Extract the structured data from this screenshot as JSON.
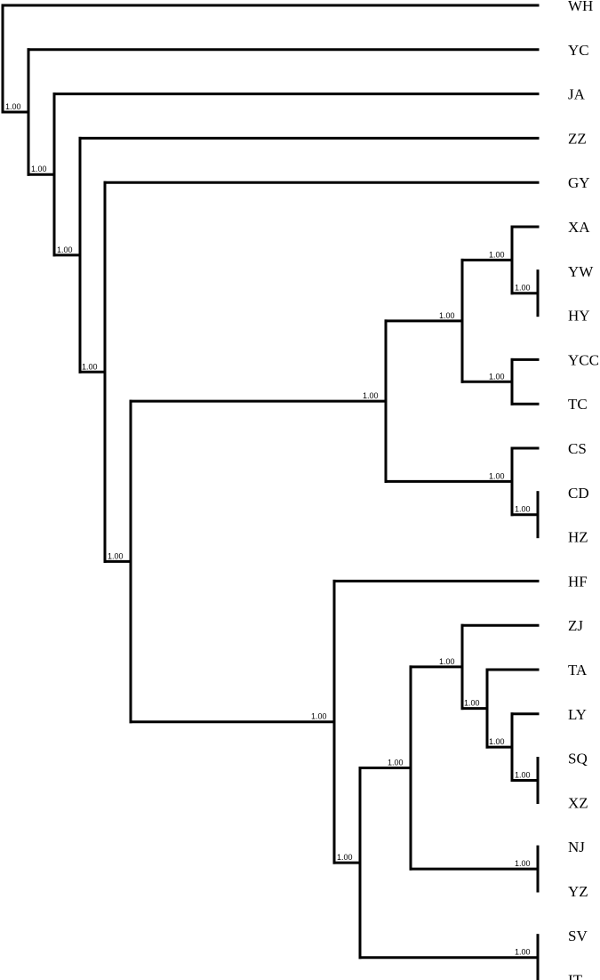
{
  "tree": {
    "leaves": [
      "WH",
      "YC",
      "JA",
      "ZZ",
      "GY",
      "XA",
      "YW",
      "HY",
      "YCC",
      "TC",
      "CS",
      "CD",
      "HZ",
      "HF",
      "ZJ",
      "TA",
      "LY",
      "SQ",
      "XZ",
      "NJ",
      "YZ",
      "SV",
      "IT"
    ],
    "root": {
      "children": [
        {
          "leaf": "WH"
        },
        {
          "support": "1.00",
          "children": [
            {
              "leaf": "YC"
            },
            {
              "support": "1.00",
              "children": [
                {
                  "leaf": "JA"
                },
                {
                  "support": "1.00",
                  "children": [
                    {
                      "leaf": "ZZ"
                    },
                    {
                      "support": "1.00",
                      "children": [
                        {
                          "leaf": "GY"
                        },
                        {
                          "support": "1.00",
                          "children": [
                            {
                              "support": "1.00",
                              "children": [
                                {
                                  "support": "1.00",
                                  "children": [
                                    {
                                      "support": "1.00",
                                      "children": [
                                        {
                                          "leaf": "XA"
                                        },
                                        {
                                          "support": "1.00",
                                          "children": [
                                            {
                                              "leaf": "YW"
                                            },
                                            {
                                              "leaf": "HY"
                                            }
                                          ]
                                        }
                                      ]
                                    },
                                    {
                                      "support": "1.00",
                                      "children": [
                                        {
                                          "leaf": "YCC"
                                        },
                                        {
                                          "leaf": "TC"
                                        }
                                      ]
                                    }
                                  ]
                                },
                                {
                                  "support": "1.00",
                                  "children": [
                                    {
                                      "leaf": "CS"
                                    },
                                    {
                                      "support": "1.00",
                                      "children": [
                                        {
                                          "leaf": "CD"
                                        },
                                        {
                                          "leaf": "HZ"
                                        }
                                      ]
                                    }
                                  ]
                                }
                              ]
                            },
                            {
                              "support": "1.00",
                              "children": [
                                {
                                  "leaf": "HF"
                                },
                                {
                                  "support": "1.00",
                                  "children": [
                                    {
                                      "support": "1.00",
                                      "children": [
                                        {
                                          "support": "1.00",
                                          "children": [
                                            {
                                              "leaf": "ZJ"
                                            },
                                            {
                                              "support": "1.00",
                                              "children": [
                                                {
                                                  "leaf": "TA"
                                                },
                                                {
                                                  "support": "1.00",
                                                  "children": [
                                                    {
                                                      "leaf": "LY"
                                                    },
                                                    {
                                                      "support": "1.00",
                                                      "children": [
                                                        {
                                                          "leaf": "SQ"
                                                        },
                                                        {
                                                          "leaf": "XZ"
                                                        }
                                                      ]
                                                    }
                                                  ]
                                                }
                                              ]
                                            }
                                          ]
                                        },
                                        {
                                          "support": "1.00",
                                          "children": [
                                            {
                                              "leaf": "NJ"
                                            },
                                            {
                                              "leaf": "YZ"
                                            }
                                          ]
                                        }
                                      ]
                                    },
                                    {
                                      "support": "1.00",
                                      "children": [
                                        {
                                          "leaf": "SV"
                                        },
                                        {
                                          "leaf": "IT"
                                        }
                                      ]
                                    }
                                  ]
                                }
                              ]
                            }
                          ]
                        }
                      ]
                    }
                  ]
                }
              ]
            }
          ]
        }
      ]
    }
  }
}
